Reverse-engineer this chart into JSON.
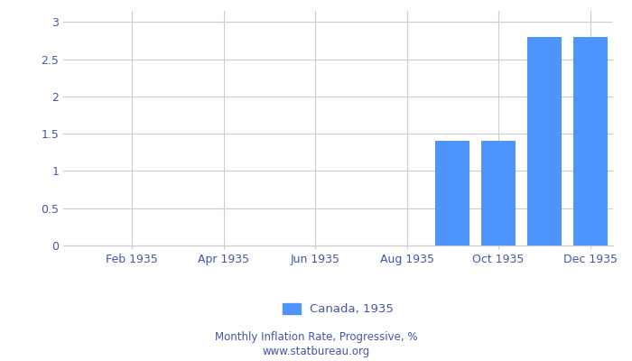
{
  "month_nums": [
    1,
    2,
    3,
    4,
    5,
    6,
    7,
    8,
    9,
    10,
    11,
    12
  ],
  "values": [
    0,
    0,
    0,
    0,
    0,
    0,
    0,
    0,
    1.4,
    1.4,
    2.8,
    2.8
  ],
  "bar_color": "#4d94ff",
  "ylim": [
    0,
    3.15
  ],
  "yticks": [
    0,
    0.5,
    1,
    1.5,
    2,
    2.5,
    3
  ],
  "ytick_labels": [
    "0",
    "0.5",
    "1",
    "1.5",
    "2",
    "2.5",
    "3"
  ],
  "xtick_positions": [
    2,
    4,
    6,
    8,
    10,
    12
  ],
  "xtick_labels": [
    "Feb 1935",
    "Apr 1935",
    "Jun 1935",
    "Aug 1935",
    "Oct 1935",
    "Dec 1935"
  ],
  "legend_label": "Canada, 1935",
  "footer_line1": "Monthly Inflation Rate, Progressive, %",
  "footer_line2": "www.statbureau.org",
  "grid_color": "#cccccc",
  "background_color": "#ffffff",
  "text_color": "#4455aa",
  "footer_color": "#4455aa"
}
